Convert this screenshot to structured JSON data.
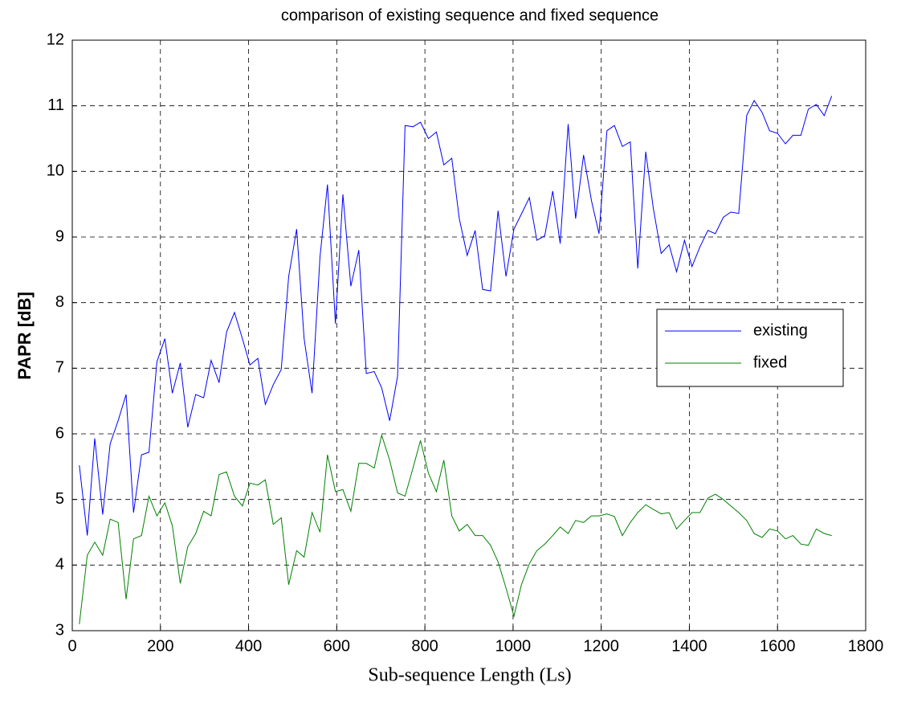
{
  "chart_data": {
    "type": "line",
    "title": "comparison of existing sequence and fixed sequence",
    "xlabel": "Sub-sequence Length (Ls)",
    "ylabel": "PAPR [dB]",
    "x": [
      16,
      34,
      51,
      69,
      86,
      104,
      122,
      139,
      157,
      174,
      192,
      210,
      227,
      245,
      262,
      280,
      298,
      315,
      333,
      350,
      368,
      386,
      403,
      421,
      438,
      456,
      474,
      491,
      509,
      526,
      544,
      562,
      579,
      597,
      614,
      632,
      650,
      667,
      685,
      702,
      720,
      738,
      755,
      773,
      790,
      808,
      826,
      843,
      861,
      878,
      896,
      914,
      931,
      949,
      966,
      984,
      1002,
      1019,
      1037,
      1054,
      1072,
      1090,
      1107,
      1125,
      1142,
      1160,
      1178,
      1195,
      1213,
      1230,
      1248,
      1266,
      1283,
      1301,
      1318,
      1336,
      1354,
      1371,
      1389,
      1406,
      1424,
      1442,
      1459,
      1477,
      1494,
      1512,
      1530,
      1547,
      1565,
      1582,
      1600,
      1618,
      1635,
      1653,
      1670,
      1688,
      1706,
      1723
    ],
    "series": [
      {
        "name": "existing",
        "color": "#0000ff",
        "values": [
          5.52,
          4.45,
          5.93,
          4.77,
          5.85,
          6.2,
          6.6,
          4.8,
          5.68,
          5.72,
          7.1,
          7.45,
          6.62,
          7.08,
          6.1,
          6.6,
          6.55,
          7.12,
          6.78,
          7.55,
          7.85,
          7.45,
          7.05,
          7.15,
          6.45,
          6.75,
          6.98,
          8.4,
          9.12,
          7.45,
          6.62,
          8.7,
          9.8,
          7.68,
          9.65,
          8.25,
          8.8,
          6.92,
          6.95,
          6.7,
          6.2,
          6.88,
          10.7,
          10.68,
          10.75,
          10.5,
          10.6,
          10.1,
          10.2,
          9.28,
          8.72,
          9.1,
          8.2,
          8.18,
          9.4,
          8.4,
          9.12,
          9.35,
          9.6,
          8.95,
          9.02,
          9.7,
          8.9,
          10.72,
          9.28,
          10.25,
          9.55,
          9.05,
          10.62,
          10.7,
          10.38,
          10.45,
          8.52,
          10.3,
          9.45,
          8.75,
          8.88,
          8.47,
          8.95,
          8.55,
          8.85,
          9.1,
          9.05,
          9.3,
          9.38,
          9.36,
          10.85,
          11.08,
          10.9,
          10.62,
          10.58,
          10.42,
          10.55,
          10.55,
          10.95,
          11.02,
          10.85,
          11.15
        ]
      },
      {
        "name": "fixed",
        "color": "#008000",
        "values": [
          3.1,
          4.15,
          4.35,
          4.15,
          4.7,
          4.65,
          3.48,
          4.4,
          4.45,
          5.05,
          4.75,
          4.95,
          4.6,
          3.72,
          4.28,
          4.48,
          4.82,
          4.75,
          5.38,
          5.42,
          5.05,
          4.9,
          5.25,
          5.22,
          5.3,
          4.62,
          4.72,
          3.7,
          4.22,
          4.12,
          4.8,
          4.5,
          5.68,
          5.12,
          5.15,
          4.82,
          5.55,
          5.55,
          5.48,
          5.98,
          5.6,
          5.1,
          5.05,
          5.48,
          5.9,
          5.4,
          5.12,
          5.6,
          4.75,
          4.52,
          4.62,
          4.45,
          4.45,
          4.3,
          4.05,
          3.65,
          3.22,
          3.7,
          4.02,
          4.22,
          4.32,
          4.45,
          4.58,
          4.48,
          4.68,
          4.65,
          4.75,
          4.75,
          4.78,
          4.74,
          4.45,
          4.65,
          4.8,
          4.92,
          4.85,
          4.78,
          4.8,
          4.55,
          4.68,
          4.8,
          4.8,
          5.02,
          5.08,
          5.0,
          4.9,
          4.8,
          4.68,
          4.48,
          4.42,
          4.55,
          4.52,
          4.4,
          4.45,
          4.32,
          4.3,
          4.55,
          4.48,
          4.45
        ]
      }
    ],
    "xlim": [
      0,
      1800
    ],
    "xticks": [
      0,
      200,
      400,
      600,
      800,
      1000,
      1200,
      1400,
      1600,
      1800
    ],
    "ylim": [
      3,
      12
    ],
    "yticks": [
      3,
      4,
      5,
      6,
      7,
      8,
      9,
      10,
      11,
      12
    ],
    "grid": true,
    "legend": "right"
  }
}
